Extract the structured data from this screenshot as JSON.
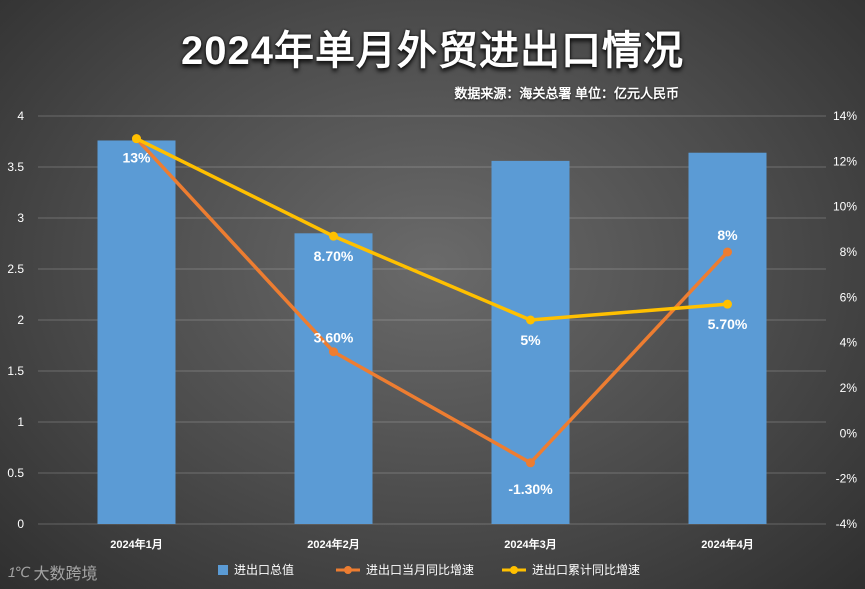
{
  "title": "2024年单月外贸进出口情况",
  "source_note": "数据来源：海关总署 单位：亿元人民币",
  "watermark": {
    "mark": "1℃",
    "text": "大数跨境"
  },
  "colors": {
    "bar": "#5b9bd5",
    "monthly_line": "#ed7d31",
    "cumulative_line": "#ffc000",
    "axis_text": "#ffffff"
  },
  "chart_data": {
    "type": "bar+line",
    "title": "2024年单月外贸进出口情况",
    "categories": [
      "2024年1月",
      "2024年2月",
      "2024年3月",
      "2024年4月"
    ],
    "left_axis": {
      "min": 0,
      "max": 4,
      "step": 0.5,
      "ticks": [
        "0",
        "0.5",
        "1",
        "1.5",
        "2",
        "2.5",
        "3",
        "3.5",
        "4"
      ]
    },
    "right_axis": {
      "min": -4,
      "max": 14,
      "step": 2,
      "ticks": [
        "-4%",
        "-2%",
        "0%",
        "2%",
        "4%",
        "6%",
        "8%",
        "10%",
        "12%",
        "14%"
      ]
    },
    "series": [
      {
        "name": "进出口总值",
        "kind": "bar",
        "axis": "left",
        "values": [
          3.76,
          2.85,
          3.56,
          3.64
        ]
      },
      {
        "name": "进出口当月同比增速",
        "kind": "line",
        "axis": "right",
        "values": [
          13,
          3.6,
          -1.3,
          8
        ],
        "labels": [
          "13%",
          "3.60%",
          "-1.30%",
          "8%"
        ]
      },
      {
        "name": "进出口累计同比增速",
        "kind": "line",
        "axis": "right",
        "values": [
          13,
          8.7,
          5,
          5.7
        ],
        "labels": [
          "13%",
          "8.70%",
          "5%",
          "5.70%"
        ]
      }
    ],
    "legend_position": "bottom",
    "grid": true
  }
}
